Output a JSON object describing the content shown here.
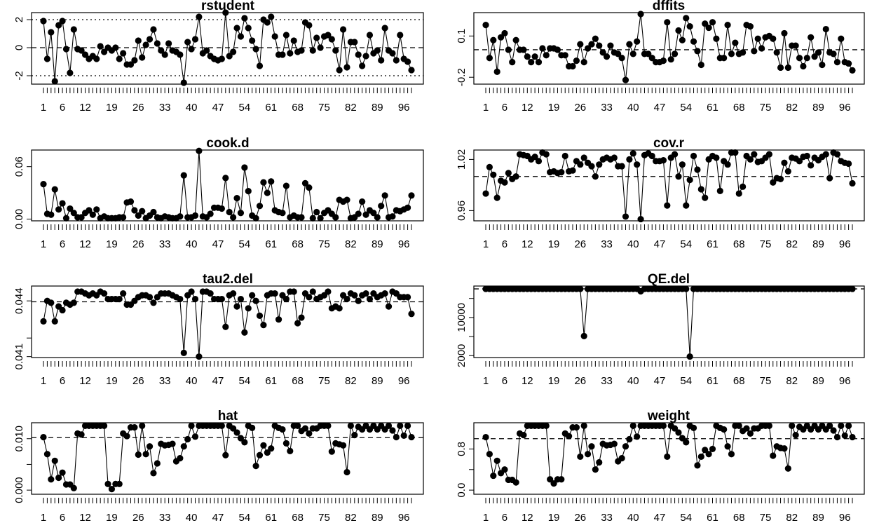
{
  "figure": {
    "background": "#ffffff",
    "line_color": "#000000",
    "point_color": "#000000"
  },
  "chart_data": [
    {
      "type": "line",
      "title": "rstudent",
      "x_tick_labels": [
        "1",
        "6",
        "12",
        "19",
        "26",
        "33",
        "40",
        "47",
        "54",
        "61",
        "68",
        "75",
        "82",
        "89",
        "96"
      ],
      "y_ticks": [
        -2,
        0,
        2
      ],
      "ylim": [
        -2.6,
        2.5
      ],
      "reference_lines": [
        {
          "value": 0,
          "style": "dashed"
        },
        {
          "value": 2,
          "style": "dotted"
        },
        {
          "value": -2,
          "style": "dotted"
        }
      ],
      "values": [
        1.9,
        -0.8,
        1.1,
        -2.4,
        1.6,
        1.9,
        -0.1,
        -1.8,
        1.3,
        -0.1,
        -0.2,
        -0.5,
        -0.8,
        -0.6,
        -0.8,
        0.1,
        -0.3,
        0.0,
        -0.2,
        0.0,
        -0.8,
        -0.4,
        -1.2,
        -1.2,
        -0.9,
        0.5,
        -0.7,
        0.2,
        0.6,
        1.3,
        0.3,
        -0.2,
        -0.5,
        0.3,
        -0.2,
        -0.3,
        -0.5,
        -2.5,
        0.4,
        -0.1,
        0.6,
        2.2,
        -0.4,
        -0.2,
        -0.6,
        -0.8,
        -0.9,
        -0.8,
        2.5,
        -0.6,
        -0.3,
        1.4,
        0.8,
        2.1,
        1.4,
        0.5,
        -0.1,
        -1.3,
        2.0,
        1.8,
        2.2,
        0.8,
        -0.5,
        -0.5,
        0.9,
        -0.4,
        0.5,
        -0.3,
        -0.2,
        1.8,
        1.6,
        -0.2,
        0.7,
        0.0,
        0.8,
        0.9,
        0.6,
        -0.2,
        -1.6,
        1.3,
        -1.4,
        0.4,
        0.4,
        -0.5,
        -1.3,
        -0.6,
        0.9,
        -0.4,
        -0.2,
        -0.9,
        1.4,
        -0.2,
        -0.4,
        -0.9,
        0.9,
        -0.8,
        -1.0,
        -1.6
      ]
    },
    {
      "type": "line",
      "title": "dffits",
      "x_tick_labels": [
        "1",
        "6",
        "12",
        "19",
        "26",
        "33",
        "40",
        "47",
        "54",
        "61",
        "68",
        "75",
        "82",
        "89",
        "96"
      ],
      "y_ticks": [
        -0.2,
        0.1
      ],
      "ylim": [
        -0.25,
        0.27
      ],
      "reference_lines": [
        {
          "value": 0,
          "style": "dashed"
        }
      ],
      "values": [
        0.18,
        -0.06,
        0.07,
        -0.16,
        0.09,
        0.12,
        0.0,
        -0.09,
        0.07,
        0.0,
        0.0,
        -0.05,
        -0.09,
        -0.05,
        -0.09,
        0.01,
        -0.04,
        0.01,
        0.01,
        0.0,
        -0.04,
        -0.04,
        -0.12,
        -0.12,
        -0.08,
        0.04,
        -0.09,
        0.01,
        0.04,
        0.08,
        0.03,
        -0.02,
        -0.05,
        0.03,
        -0.02,
        -0.03,
        -0.06,
        -0.22,
        0.04,
        -0.03,
        0.06,
        0.26,
        -0.03,
        -0.03,
        -0.06,
        -0.09,
        -0.09,
        -0.08,
        0.2,
        -0.07,
        -0.03,
        0.14,
        0.07,
        0.23,
        0.17,
        0.06,
        -0.01,
        -0.11,
        0.19,
        0.16,
        0.2,
        0.08,
        -0.06,
        -0.06,
        0.18,
        -0.03,
        0.05,
        -0.03,
        -0.02,
        0.18,
        0.17,
        -0.01,
        0.08,
        0.01,
        0.09,
        0.1,
        0.08,
        -0.02,
        -0.13,
        0.12,
        -0.13,
        0.03,
        0.03,
        -0.06,
        -0.12,
        -0.06,
        0.09,
        -0.05,
        -0.02,
        -0.11,
        0.15,
        -0.02,
        -0.03,
        -0.09,
        0.08,
        -0.09,
        -0.1,
        -0.15
      ]
    },
    {
      "type": "line",
      "title": "cook.d",
      "x_tick_labels": [
        "1",
        "6",
        "12",
        "19",
        "26",
        "33",
        "40",
        "47",
        "54",
        "61",
        "68",
        "75",
        "82",
        "89",
        "96"
      ],
      "y_ticks": [
        0.0,
        0.06
      ],
      "y_tick_labels": [
        "0.00",
        "0.06"
      ],
      "ylim": [
        -0.002,
        0.079
      ],
      "reference_lines": [],
      "values": [
        0.04,
        0.006,
        0.005,
        0.034,
        0.011,
        0.018,
        0.001,
        0.012,
        0.007,
        0.002,
        0.002,
        0.007,
        0.01,
        0.005,
        0.011,
        0.001,
        0.003,
        0.001,
        0.001,
        0.001,
        0.002,
        0.002,
        0.019,
        0.02,
        0.01,
        0.004,
        0.009,
        0.001,
        0.004,
        0.008,
        0.002,
        0.001,
        0.003,
        0.002,
        0.001,
        0.001,
        0.003,
        0.05,
        0.002,
        0.002,
        0.004,
        0.078,
        0.003,
        0.002,
        0.006,
        0.013,
        0.013,
        0.012,
        0.047,
        0.008,
        0.002,
        0.024,
        0.007,
        0.059,
        0.032,
        0.004,
        0.001,
        0.015,
        0.042,
        0.03,
        0.043,
        0.01,
        0.008,
        0.007,
        0.038,
        0.002,
        0.004,
        0.002,
        0.002,
        0.041,
        0.036,
        0.001,
        0.008,
        0.001,
        0.007,
        0.01,
        0.006,
        0.002,
        0.022,
        0.02,
        0.022,
        0.001,
        0.002,
        0.006,
        0.02,
        0.005,
        0.01,
        0.007,
        0.002,
        0.015,
        0.027,
        0.002,
        0.003,
        0.01,
        0.009,
        0.011,
        0.013,
        0.027
      ]
    },
    {
      "type": "line",
      "title": "cov.r",
      "x_tick_labels": [
        "1",
        "6",
        "12",
        "19",
        "26",
        "33",
        "40",
        "47",
        "54",
        "61",
        "68",
        "75",
        "82",
        "89",
        "96"
      ],
      "y_ticks": [
        0.96,
        1.02
      ],
      "ylim": [
        0.948,
        1.031
      ],
      "reference_lines": [
        {
          "value": 1.0,
          "style": "dashed"
        }
      ],
      "values": [
        0.98,
        1.011,
        1.002,
        0.975,
        0.995,
        0.993,
        1.004,
        0.997,
        1.0,
        1.026,
        1.025,
        1.024,
        1.02,
        1.023,
        1.018,
        1.028,
        1.026,
        1.005,
        1.006,
        1.004,
        1.005,
        1.024,
        1.006,
        1.007,
        1.018,
        1.014,
        1.022,
        1.016,
        1.012,
        1.0,
        1.014,
        1.02,
        1.022,
        1.02,
        1.022,
        1.012,
        1.012,
        0.953,
        1.02,
        1.027,
        1.014,
        0.95,
        1.025,
        1.027,
        1.024,
        1.018,
        1.018,
        1.019,
        0.966,
        1.022,
        1.026,
        1.0,
        1.014,
        0.966,
        0.996,
        1.024,
        1.008,
        0.985,
        0.975,
        1.02,
        1.024,
        1.022,
        0.983,
        1.018,
        1.014,
        1.028,
        1.028,
        0.98,
        0.988,
        1.024,
        1.02,
        1.026,
        1.017,
        1.018,
        1.022,
        1.026,
        0.993,
        0.998,
        0.997,
        1.016,
        1.006,
        1.022,
        1.021,
        1.018,
        1.023,
        1.024,
        1.013,
        1.022,
        1.019,
        1.023,
        1.026,
        0.998,
        1.028,
        1.026,
        1.018,
        1.016,
        1.015,
        0.992
      ]
    },
    {
      "type": "line",
      "title": "tau2.del",
      "x_tick_labels": [
        "1",
        "6",
        "12",
        "19",
        "26",
        "33",
        "40",
        "47",
        "54",
        "61",
        "68",
        "75",
        "82",
        "89",
        "96"
      ],
      "y_ticks": [
        0.041,
        0.042,
        0.044
      ],
      "y_tick_labels": [
        "0.041",
        "",
        "0.044"
      ],
      "ylim": [
        0.04095,
        0.0448
      ],
      "reference_lines": [
        {
          "value": 0.04395,
          "style": "dashed"
        }
      ],
      "values": [
        0.0429,
        0.044,
        0.0439,
        0.0429,
        0.0437,
        0.0435,
        0.0439,
        0.0438,
        0.0439,
        0.0445,
        0.0445,
        0.0444,
        0.0443,
        0.0444,
        0.0443,
        0.0445,
        0.0444,
        0.0441,
        0.0441,
        0.0441,
        0.0441,
        0.0444,
        0.0438,
        0.0438,
        0.044,
        0.0442,
        0.0443,
        0.0443,
        0.0442,
        0.0439,
        0.0442,
        0.0444,
        0.0444,
        0.0444,
        0.0443,
        0.0442,
        0.0441,
        0.0412,
        0.0443,
        0.0445,
        0.0441,
        0.041,
        0.0445,
        0.0445,
        0.0444,
        0.0441,
        0.0441,
        0.0441,
        0.0426,
        0.0443,
        0.0444,
        0.0437,
        0.0441,
        0.0423,
        0.0436,
        0.0443,
        0.044,
        0.0432,
        0.0427,
        0.0443,
        0.0444,
        0.0444,
        0.043,
        0.0443,
        0.0441,
        0.0445,
        0.0445,
        0.0428,
        0.0431,
        0.0444,
        0.0442,
        0.0445,
        0.0441,
        0.0442,
        0.0443,
        0.0445,
        0.0436,
        0.0437,
        0.0436,
        0.0443,
        0.0441,
        0.0444,
        0.0443,
        0.044,
        0.0443,
        0.0444,
        0.0441,
        0.0444,
        0.0442,
        0.0443,
        0.0444,
        0.0437,
        0.0445,
        0.0444,
        0.0442,
        0.0442,
        0.0442,
        0.0433
      ]
    },
    {
      "type": "line",
      "title": "QE.del",
      "x_tick_labels": [
        "1",
        "6",
        "12",
        "19",
        "26",
        "33",
        "40",
        "47",
        "54",
        "61",
        "68",
        "75",
        "82",
        "89",
        "96"
      ],
      "y_ticks": [
        2000,
        10000
      ],
      "y_tick_labels": [
        "2000",
        "10000"
      ],
      "y_minor_ticks": [
        6000,
        14000
      ],
      "ylim": [
        1600,
        16600
      ],
      "reference_lines": [
        {
          "value": 16000,
          "style": "dashed"
        }
      ],
      "values": [
        16000,
        16000,
        16000,
        16000,
        16000,
        16000,
        16000,
        16000,
        16000,
        16000,
        16000,
        16000,
        16000,
        16000,
        16000,
        16000,
        16000,
        16000,
        16000,
        16000,
        16000,
        16000,
        16000,
        16000,
        16000,
        16000,
        6100,
        16000,
        16000,
        16000,
        16000,
        16000,
        16000,
        16000,
        16000,
        16000,
        16000,
        16000,
        16000,
        16000,
        16000,
        15500,
        16000,
        16000,
        16000,
        16000,
        16000,
        16000,
        16000,
        16000,
        16000,
        16000,
        16000,
        16000,
        1800,
        16000,
        16000,
        16000,
        16000,
        16000,
        16000,
        16000,
        16000,
        16000,
        16000,
        16000,
        16000,
        16000,
        16000,
        16000,
        16000,
        16000,
        16000,
        16000,
        16000,
        16000,
        16000,
        16000,
        16000,
        16000,
        16000,
        16000,
        16000,
        16000,
        16000,
        16000,
        16000,
        16000,
        16000,
        16000,
        16000,
        16000,
        16000,
        16000,
        16000,
        16000,
        16000,
        16000
      ]
    },
    {
      "type": "line",
      "title": "hat",
      "x_tick_labels": [
        "1",
        "6",
        "12",
        "19",
        "26",
        "33",
        "40",
        "47",
        "54",
        "61",
        "68",
        "75",
        "82",
        "89",
        "96"
      ],
      "y_ticks": [
        0.0,
        0.005,
        0.01
      ],
      "y_tick_labels": [
        "0.000",
        "",
        "0.010"
      ],
      "ylim": [
        -0.0008,
        0.0131
      ],
      "reference_lines": [
        {
          "value": 0.0102,
          "style": "dashed"
        }
      ],
      "values": [
        0.0103,
        0.007,
        0.0021,
        0.0057,
        0.0024,
        0.0034,
        0.0011,
        0.0011,
        0.0004,
        0.011,
        0.0108,
        0.0125,
        0.0125,
        0.0125,
        0.0125,
        0.0125,
        0.0125,
        0.0012,
        0.0002,
        0.0012,
        0.0012,
        0.011,
        0.0105,
        0.0122,
        0.0122,
        0.0069,
        0.0125,
        0.007,
        0.0085,
        0.0033,
        0.0052,
        0.009,
        0.0087,
        0.0088,
        0.009,
        0.0056,
        0.0062,
        0.0085,
        0.0099,
        0.0125,
        0.0104,
        0.0125,
        0.0125,
        0.0125,
        0.0125,
        0.0125,
        0.0125,
        0.0125,
        0.0068,
        0.0125,
        0.012,
        0.0112,
        0.0101,
        0.0093,
        0.0125,
        0.0121,
        0.0047,
        0.0068,
        0.0087,
        0.0073,
        0.0081,
        0.0125,
        0.0121,
        0.0118,
        0.0091,
        0.0076,
        0.0125,
        0.0125,
        0.0115,
        0.012,
        0.011,
        0.012,
        0.012,
        0.0125,
        0.0125,
        0.0125,
        0.0075,
        0.0091,
        0.0089,
        0.0087,
        0.0035,
        0.0125,
        0.0107,
        0.0123,
        0.0118,
        0.0125,
        0.0118,
        0.0125,
        0.0118,
        0.0125,
        0.0118,
        0.0125,
        0.0116,
        0.0103,
        0.0125,
        0.0106,
        0.0125,
        0.0103
      ]
    },
    {
      "type": "line",
      "title": "weight",
      "x_tick_labels": [
        "1",
        "6",
        "12",
        "19",
        "26",
        "33",
        "40",
        "47",
        "54",
        "61",
        "68",
        "75",
        "82",
        "89",
        "96"
      ],
      "y_ticks": [
        0.0,
        0.4,
        0.8
      ],
      "y_tick_labels": [
        "0.0",
        "",
        "0.8"
      ],
      "ylim": [
        -0.08,
        1.31
      ],
      "reference_lines": [
        {
          "value": 1.0,
          "style": "dashed"
        }
      ],
      "values": [
        1.03,
        0.7,
        0.28,
        0.57,
        0.33,
        0.4,
        0.2,
        0.2,
        0.15,
        1.1,
        1.07,
        1.25,
        1.25,
        1.25,
        1.25,
        1.25,
        1.25,
        0.21,
        0.13,
        0.21,
        0.21,
        1.1,
        1.05,
        1.22,
        1.22,
        0.65,
        1.25,
        0.7,
        0.85,
        0.4,
        0.54,
        0.9,
        0.87,
        0.88,
        0.9,
        0.56,
        0.62,
        0.85,
        0.99,
        1.25,
        1.04,
        1.25,
        1.25,
        1.25,
        1.25,
        1.25,
        1.25,
        1.25,
        0.65,
        1.25,
        1.2,
        1.12,
        1.01,
        0.93,
        1.25,
        1.21,
        0.48,
        0.65,
        0.78,
        0.7,
        0.8,
        1.25,
        1.21,
        1.18,
        0.85,
        0.7,
        1.25,
        1.25,
        1.15,
        1.2,
        1.1,
        1.2,
        1.2,
        1.25,
        1.25,
        1.25,
        0.67,
        0.85,
        0.82,
        0.81,
        0.42,
        1.25,
        1.07,
        1.23,
        1.18,
        1.25,
        1.18,
        1.25,
        1.18,
        1.25,
        1.18,
        1.25,
        1.16,
        1.03,
        1.25,
        1.06,
        1.25,
        1.03
      ]
    }
  ]
}
